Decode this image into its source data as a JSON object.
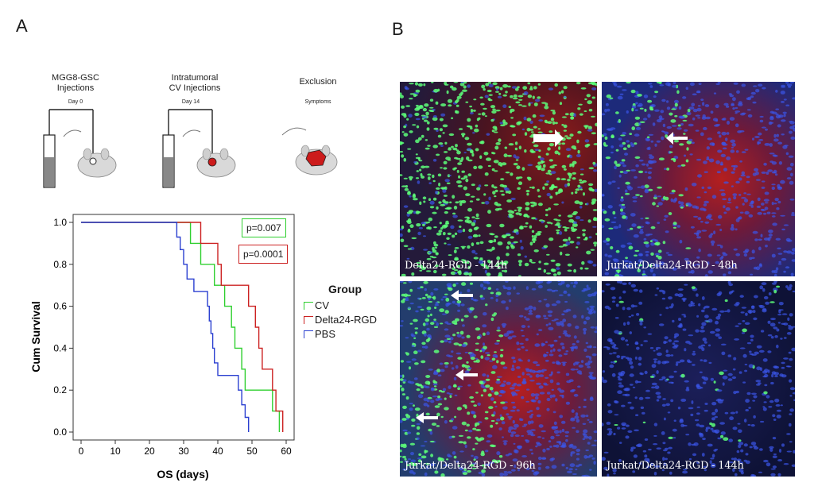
{
  "panels": {
    "a": "A",
    "b": "B"
  },
  "schematic": {
    "steps": [
      {
        "title_line1": "MGG8-GSC",
        "title_line2": "Injections",
        "sub": "Day 0"
      },
      {
        "title_line1": "Intratumoral",
        "title_line2": "CV Injections",
        "sub": "Day 14"
      },
      {
        "title_line1": "Exclusion",
        "title_line2": "",
        "sub": "Symptoms"
      }
    ]
  },
  "chart_data": {
    "type": "line",
    "subtype": "kaplan-meier step",
    "xlabel": "OS (days)",
    "ylabel": "Cum Survival",
    "xlim": [
      0,
      60
    ],
    "ylim": [
      0,
      1.0
    ],
    "xticks": [
      0,
      10,
      20,
      30,
      40,
      50,
      60
    ],
    "yticks": [
      0.0,
      0.2,
      0.4,
      0.6,
      0.8,
      1.0
    ],
    "legend_title": "Group",
    "legend_position": "right",
    "series": [
      {
        "name": "CV",
        "color": "#2fcf2f",
        "points": [
          [
            0,
            1.0
          ],
          [
            32,
            1.0
          ],
          [
            32,
            0.9
          ],
          [
            35,
            0.9
          ],
          [
            35,
            0.8
          ],
          [
            39,
            0.8
          ],
          [
            39,
            0.7
          ],
          [
            42,
            0.7
          ],
          [
            42,
            0.6
          ],
          [
            44,
            0.6
          ],
          [
            44,
            0.5
          ],
          [
            45,
            0.5
          ],
          [
            45,
            0.4
          ],
          [
            47,
            0.4
          ],
          [
            47,
            0.3
          ],
          [
            48,
            0.3
          ],
          [
            48,
            0.2
          ],
          [
            50,
            0.2
          ],
          [
            50,
            0.2
          ],
          [
            56,
            0.2
          ],
          [
            56,
            0.1
          ],
          [
            58,
            0.1
          ],
          [
            58,
            0.0
          ]
        ]
      },
      {
        "name": "Delta24-RGD",
        "color": "#cc2222",
        "points": [
          [
            0,
            1.0
          ],
          [
            35,
            1.0
          ],
          [
            35,
            0.9
          ],
          [
            40,
            0.9
          ],
          [
            40,
            0.8
          ],
          [
            41,
            0.8
          ],
          [
            41,
            0.7
          ],
          [
            49,
            0.7
          ],
          [
            49,
            0.6
          ],
          [
            51,
            0.6
          ],
          [
            51,
            0.5
          ],
          [
            52,
            0.5
          ],
          [
            52,
            0.4
          ],
          [
            53,
            0.4
          ],
          [
            53,
            0.3
          ],
          [
            56,
            0.3
          ],
          [
            56,
            0.2
          ],
          [
            57,
            0.2
          ],
          [
            57,
            0.1
          ],
          [
            59,
            0.1
          ],
          [
            59,
            0.0
          ]
        ]
      },
      {
        "name": "PBS",
        "color": "#2a3fd0",
        "points": [
          [
            0,
            1.0
          ],
          [
            28,
            1.0
          ],
          [
            28,
            0.93
          ],
          [
            29,
            0.93
          ],
          [
            29,
            0.87
          ],
          [
            30,
            0.87
          ],
          [
            30,
            0.8
          ],
          [
            31,
            0.8
          ],
          [
            31,
            0.73
          ],
          [
            33,
            0.73
          ],
          [
            33,
            0.67
          ],
          [
            37,
            0.67
          ],
          [
            37,
            0.6
          ],
          [
            37.5,
            0.6
          ],
          [
            37.5,
            0.53
          ],
          [
            38,
            0.53
          ],
          [
            38,
            0.47
          ],
          [
            38.5,
            0.47
          ],
          [
            38.5,
            0.4
          ],
          [
            39,
            0.4
          ],
          [
            39,
            0.33
          ],
          [
            40,
            0.33
          ],
          [
            40,
            0.27
          ],
          [
            46,
            0.27
          ],
          [
            46,
            0.2
          ],
          [
            47,
            0.2
          ],
          [
            47,
            0.13
          ],
          [
            48,
            0.13
          ],
          [
            48,
            0.07
          ],
          [
            49,
            0.07
          ],
          [
            49,
            0.0
          ]
        ]
      }
    ],
    "annotations": [
      {
        "text": "p=0.007",
        "color": "#2fcf2f"
      },
      {
        "text": "p=0.0001",
        "color": "#cc2222"
      }
    ]
  },
  "micrographs": [
    {
      "label": "Delta24-RGD - 144h"
    },
    {
      "label": "Jurkat/Delta24-RGD - 48h"
    },
    {
      "label": "Jurkat/Delta24-RGD - 96h"
    },
    {
      "label": "Jurkat/Delta24-RGD - 144h"
    }
  ]
}
